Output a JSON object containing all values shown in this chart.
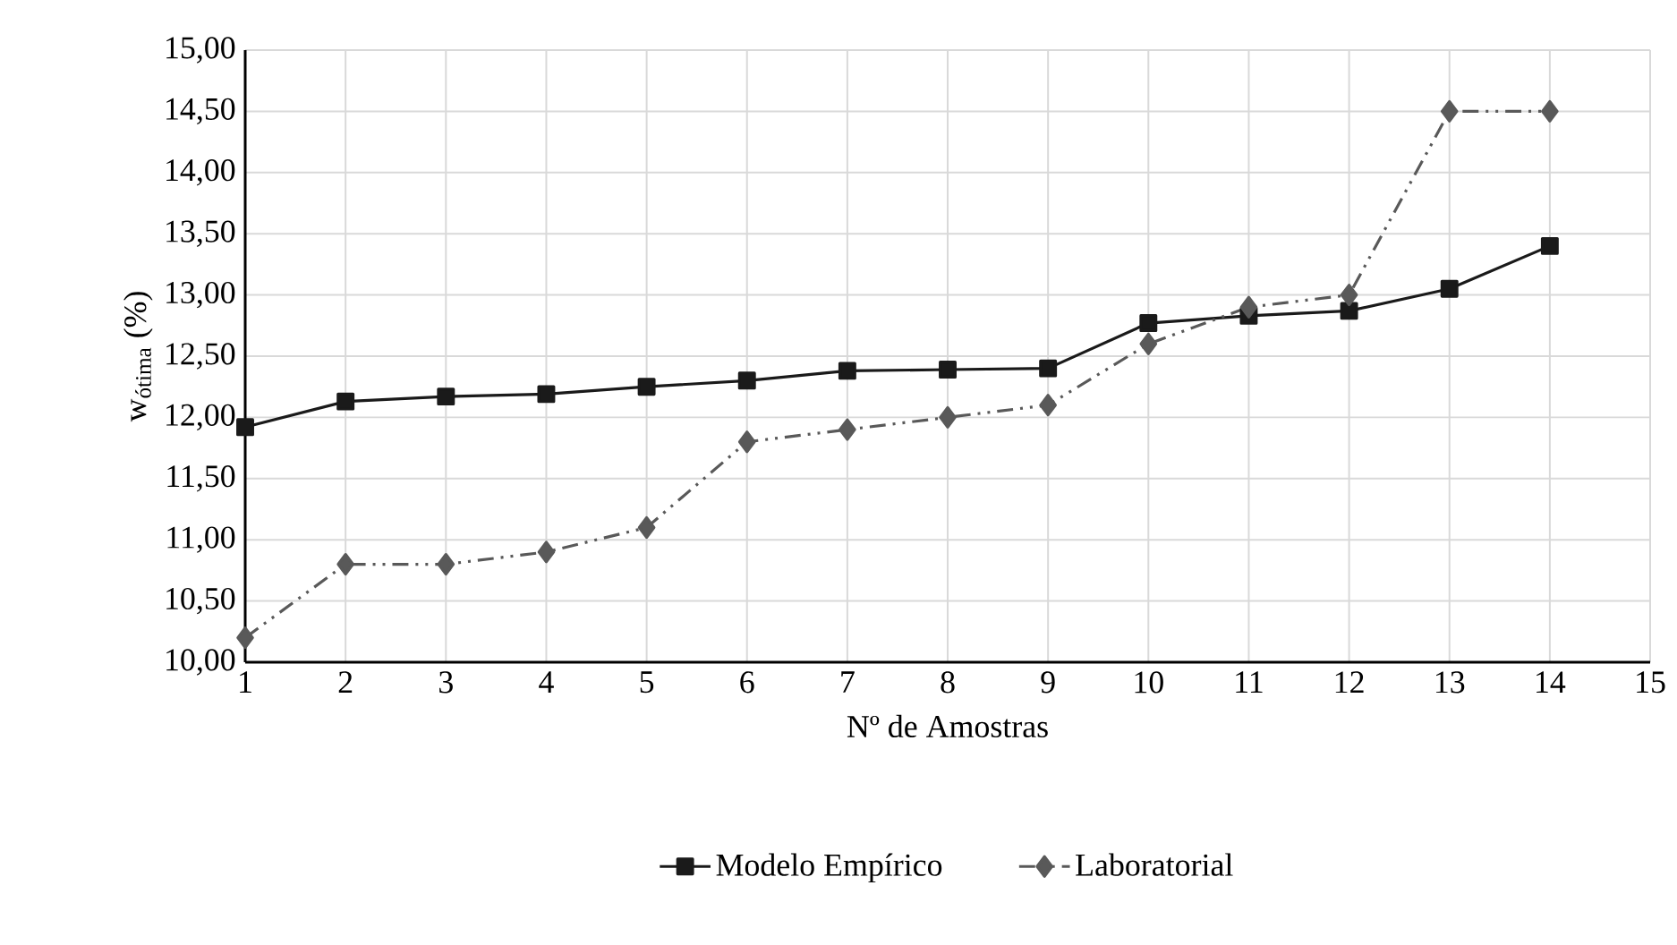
{
  "chart_data": {
    "type": "line",
    "xlabel": "Nº de Amostras",
    "ylabel": "w$_{ótima}$ (%)",
    "x": [
      1,
      2,
      3,
      4,
      5,
      6,
      7,
      8,
      9,
      10,
      11,
      12,
      13,
      14
    ],
    "series": [
      {
        "name": "Modelo Empírico",
        "color": "#1a1a1a",
        "marker": "square",
        "line_style": "solid",
        "values": [
          11.92,
          12.13,
          12.17,
          12.19,
          12.25,
          12.3,
          12.38,
          12.39,
          12.4,
          12.77,
          12.83,
          12.87,
          13.05,
          13.4
        ]
      },
      {
        "name": "Laboratorial",
        "color": "#595959",
        "marker": "diamond",
        "line_style": "dashed",
        "values": [
          10.2,
          10.8,
          10.8,
          10.9,
          11.1,
          11.8,
          11.9,
          12.0,
          12.1,
          12.6,
          12.9,
          13.0,
          14.5,
          14.5
        ]
      }
    ],
    "xlim": [
      1,
      15
    ],
    "xticks": [
      1,
      2,
      3,
      4,
      5,
      6,
      7,
      8,
      9,
      10,
      11,
      12,
      13,
      14,
      15
    ],
    "ylim": [
      10,
      15
    ],
    "yticks": [
      {
        "value": 10,
        "label": "10,00"
      },
      {
        "value": 10.5,
        "label": "10,50"
      },
      {
        "value": 11,
        "label": "11,00"
      },
      {
        "value": 11.5,
        "label": "11,50"
      },
      {
        "value": 12,
        "label": "12,00"
      },
      {
        "value": 12.5,
        "label": "12,50"
      },
      {
        "value": 13,
        "label": "13,00"
      },
      {
        "value": 13.5,
        "label": "13,50"
      },
      {
        "value": 14,
        "label": "14,00"
      },
      {
        "value": 14.5,
        "label": "14,50"
      },
      {
        "value": 15,
        "label": "15,00"
      }
    ],
    "grid": true,
    "legend": "bottom"
  }
}
